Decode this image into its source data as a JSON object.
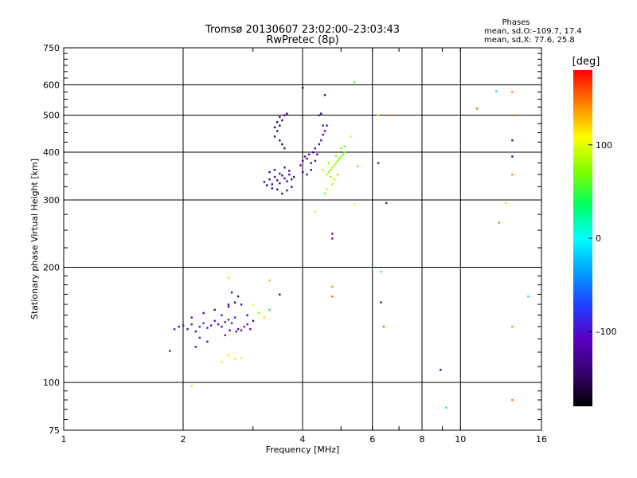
{
  "header": {
    "title": "Tromsø 20130607 23:02:00–23:03:43",
    "subtitle": "RwPretec (8p)",
    "phases_title": "Phases",
    "phases_o": "mean, sd,O:–109.7, 17.4",
    "phases_x": "mean, sd,X:  77.6, 25.8"
  },
  "colorbar": {
    "label": "[deg]",
    "range": [
      -180,
      180
    ],
    "ticks": [
      100,
      0,
      -100
    ],
    "tick_labels": [
      "100",
      "0",
      "–100"
    ],
    "colormap": [
      "#000000",
      "#3a0070",
      "#5a00c0",
      "#2040ff",
      "#00a0ff",
      "#00ffff",
      "#00ff60",
      "#80ff00",
      "#ffff00",
      "#ff8000",
      "#ff0000"
    ]
  },
  "chart_data": {
    "type": "scatter",
    "xlabel": "Frequency [MHz]",
    "ylabel": "Stationary phase Virtual Height [km]",
    "xscale": "log",
    "yscale": "log",
    "xlim": [
      1,
      16
    ],
    "ylim": [
      75,
      750
    ],
    "grid": true,
    "xticks": [
      1,
      2,
      4,
      6,
      8,
      10,
      16
    ],
    "xtick_labels": [
      "1",
      "2",
      "4",
      "6",
      "8",
      "10",
      "16"
    ],
    "yticks": [
      75,
      100,
      200,
      300,
      400,
      500,
      600,
      750
    ],
    "ytick_labels": [
      "75",
      "100",
      "200",
      "300",
      "400",
      "500",
      "600",
      "750"
    ],
    "series": [
      {
        "points": [
          [
            1.9,
            138,
            -100
          ],
          [
            1.95,
            140,
            -102
          ],
          [
            2.0,
            141,
            -100
          ],
          [
            2.05,
            138,
            -105
          ],
          [
            2.1,
            142,
            -98
          ],
          [
            2.15,
            136,
            -108
          ],
          [
            2.2,
            140,
            -100
          ],
          [
            2.25,
            143,
            -95
          ],
          [
            2.3,
            139,
            -103
          ],
          [
            2.35,
            141,
            -100
          ],
          [
            2.4,
            145,
            -96
          ],
          [
            2.45,
            142,
            -102
          ],
          [
            2.5,
            140,
            -105
          ],
          [
            2.55,
            144,
            -98
          ],
          [
            2.6,
            146,
            -100
          ],
          [
            2.62,
            137,
            -110
          ],
          [
            2.65,
            143,
            -100
          ],
          [
            2.7,
            148,
            -98
          ],
          [
            2.72,
            136,
            -108
          ],
          [
            2.75,
            138,
            -105
          ],
          [
            2.8,
            137,
            -110
          ],
          [
            2.85,
            140,
            -100
          ],
          [
            2.9,
            142,
            -98
          ],
          [
            2.95,
            138,
            -102
          ],
          [
            2.25,
            152,
            -115
          ],
          [
            2.4,
            155,
            -120
          ],
          [
            2.5,
            150,
            -112
          ],
          [
            2.6,
            158,
            -130
          ],
          [
            2.7,
            162,
            -135
          ],
          [
            2.75,
            168,
            -140
          ],
          [
            2.65,
            172,
            -138
          ],
          [
            2.8,
            160,
            -125
          ],
          [
            2.9,
            150,
            -115
          ],
          [
            3.0,
            145,
            -110
          ],
          [
            2.1,
            148,
            -110
          ],
          [
            2.2,
            131,
            -100
          ],
          [
            2.3,
            128,
            -110
          ],
          [
            2.15,
            124,
            -108
          ],
          [
            1.85,
            121,
            -110
          ],
          [
            2.55,
            133,
            -100
          ],
          [
            2.6,
            160,
            -118
          ],
          [
            3.2,
            335,
            -140
          ],
          [
            3.3,
            340,
            -135
          ],
          [
            3.35,
            330,
            -138
          ],
          [
            3.4,
            345,
            -132
          ],
          [
            3.45,
            338,
            -136
          ],
          [
            3.5,
            332,
            -140
          ],
          [
            3.55,
            348,
            -130
          ],
          [
            3.6,
            342,
            -135
          ],
          [
            3.65,
            336,
            -138
          ],
          [
            3.7,
            350,
            -128
          ],
          [
            3.75,
            340,
            -134
          ],
          [
            3.3,
            355,
            -130
          ],
          [
            3.4,
            360,
            -128
          ],
          [
            3.5,
            352,
            -132
          ],
          [
            3.6,
            365,
            -126
          ],
          [
            3.7,
            358,
            -130
          ],
          [
            3.8,
            345,
            -135
          ],
          [
            3.75,
            325,
            -140
          ],
          [
            3.65,
            318,
            -142
          ],
          [
            3.55,
            312,
            -140
          ],
          [
            3.45,
            320,
            -138
          ],
          [
            3.35,
            322,
            -140
          ],
          [
            3.25,
            328,
            -138
          ],
          [
            3.4,
            440,
            -140
          ],
          [
            3.45,
            455,
            -138
          ],
          [
            3.5,
            470,
            -135
          ],
          [
            3.55,
            485,
            -132
          ],
          [
            3.6,
            500,
            -130
          ],
          [
            3.65,
            505,
            -128
          ],
          [
            3.5,
            430,
            -140
          ],
          [
            3.55,
            420,
            -142
          ],
          [
            3.6,
            410,
            -140
          ],
          [
            3.4,
            465,
            -138
          ],
          [
            3.45,
            480,
            -135
          ],
          [
            3.5,
            495,
            -132
          ],
          [
            3.95,
            370,
            -125
          ],
          [
            4.0,
            380,
            -120
          ],
          [
            4.05,
            390,
            -122
          ],
          [
            4.1,
            385,
            -118
          ],
          [
            4.15,
            395,
            -120
          ],
          [
            4.2,
            375,
            -122
          ],
          [
            4.25,
            400,
            -118
          ],
          [
            4.3,
            410,
            -115
          ],
          [
            4.35,
            395,
            -120
          ],
          [
            4.4,
            420,
            -112
          ],
          [
            4.45,
            430,
            -110
          ],
          [
            4.5,
            445,
            -108
          ],
          [
            4.55,
            455,
            -105
          ],
          [
            4.5,
            470,
            -110
          ],
          [
            4.4,
            500,
            -112
          ],
          [
            4.6,
            470,
            -108
          ],
          [
            4.3,
            380,
            -118
          ],
          [
            4.2,
            360,
            -120
          ],
          [
            4.1,
            350,
            -122
          ],
          [
            4.0,
            355,
            -120
          ],
          [
            4.0,
            590,
            -135
          ],
          [
            4.6,
            350,
            80
          ],
          [
            4.65,
            355,
            75
          ],
          [
            4.7,
            360,
            70
          ],
          [
            4.75,
            365,
            78
          ],
          [
            4.8,
            370,
            72
          ],
          [
            4.85,
            375,
            76
          ],
          [
            4.9,
            380,
            74
          ],
          [
            4.95,
            385,
            68
          ],
          [
            5.0,
            390,
            72
          ],
          [
            5.05,
            395,
            75
          ],
          [
            5.1,
            400,
            70
          ],
          [
            4.7,
            345,
            78
          ],
          [
            4.8,
            340,
            80
          ],
          [
            4.9,
            350,
            74
          ],
          [
            4.75,
            330,
            85
          ],
          [
            4.6,
            320,
            90
          ],
          [
            4.55,
            312,
            60
          ],
          [
            5.0,
            410,
            65
          ],
          [
            5.1,
            415,
            60
          ],
          [
            5.3,
            440,
            95
          ],
          [
            5.4,
            610,
            55
          ],
          [
            4.5,
            360,
            82
          ],
          [
            4.65,
            375,
            76
          ],
          [
            4.85,
            392,
            70
          ],
          [
            5.5,
            368,
            60
          ],
          [
            4.3,
            280,
            115
          ],
          [
            5.4,
            292,
            102
          ],
          [
            4.55,
            565,
            -125
          ],
          [
            4.45,
            505,
            -128
          ],
          [
            4.75,
            245,
            -110
          ],
          [
            4.75,
            238,
            -100
          ],
          [
            4.75,
            178,
            140
          ],
          [
            4.75,
            168,
            155
          ],
          [
            3.5,
            170,
            -145
          ],
          [
            3.3,
            185,
            130
          ],
          [
            3.1,
            152,
            75
          ],
          [
            3.2,
            148,
            120
          ],
          [
            3.0,
            160,
            110
          ],
          [
            2.6,
            188,
            120
          ],
          [
            2.6,
            118,
            110
          ],
          [
            2.8,
            116,
            100
          ],
          [
            2.7,
            115,
            110
          ],
          [
            2.5,
            113,
            115
          ],
          [
            2.1,
            98,
            120
          ],
          [
            3.3,
            155,
            35
          ],
          [
            6.2,
            500,
            90
          ],
          [
            6.7,
            500,
            150
          ],
          [
            6.2,
            375,
            -115
          ],
          [
            6.5,
            295,
            -120
          ],
          [
            6.3,
            195,
            10
          ],
          [
            6.3,
            162,
            -112
          ],
          [
            6.4,
            140,
            150
          ],
          [
            8.9,
            108,
            -115
          ],
          [
            9.2,
            86,
            -10
          ],
          [
            11.0,
            520,
            150
          ],
          [
            12.3,
            578,
            -10
          ],
          [
            13.5,
            575,
            145
          ],
          [
            13.5,
            500,
            150
          ],
          [
            13.5,
            430,
            -140
          ],
          [
            13.5,
            390,
            -150
          ],
          [
            13.5,
            350,
            145
          ],
          [
            13.0,
            295,
            120
          ],
          [
            12.5,
            262,
            150
          ],
          [
            14.8,
            168,
            -5
          ],
          [
            13.5,
            140,
            140
          ],
          [
            13.5,
            90,
            150
          ]
        ]
      }
    ]
  }
}
